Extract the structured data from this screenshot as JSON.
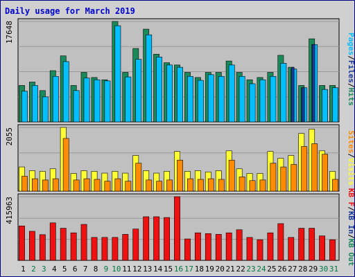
{
  "colors": {
    "background": "#ffffff",
    "frame": "#d0d0d0",
    "frame_border": "#000080",
    "plot_bg": "#c0c0c0",
    "grid": "#999999",
    "title": "#0000cc",
    "weekday": "#000000",
    "weekend": "#007744",
    "slash": "#000000"
  },
  "chart_data": [
    {
      "type": "bar",
      "id": "pages-files-hits",
      "title": "Daily usage for March 2019",
      "ylabel_max": "17648",
      "ylim": [
        0,
        17648
      ],
      "grid": true,
      "categories": [
        "1",
        "2",
        "3",
        "4",
        "5",
        "6",
        "7",
        "8",
        "9",
        "10",
        "11",
        "12",
        "13",
        "14",
        "15",
        "16",
        "17",
        "18",
        "19",
        "20",
        "21",
        "22",
        "23",
        "24",
        "25",
        "26",
        "27",
        "28",
        "29",
        "30",
        "31"
      ],
      "series": [
        {
          "name": "Hits",
          "color": "#1a8a5a",
          "values": [
            6400,
            7000,
            5500,
            9000,
            11600,
            6400,
            8700,
            7800,
            7400,
            17648,
            8700,
            12900,
            16300,
            11900,
            10400,
            10000,
            8700,
            7800,
            8700,
            8700,
            10700,
            8700,
            7400,
            7800,
            8700,
            11700,
            9600,
            6400,
            14600,
            6400,
            6400
          ]
        },
        {
          "name": "Files",
          "color": "#00bfff",
          "values": [
            5400,
            6400,
            4400,
            8000,
            10600,
            5500,
            7700,
            7400,
            7200,
            16900,
            7900,
            11000,
            15300,
            11400,
            10000,
            9600,
            8000,
            7300,
            8300,
            8000,
            10000,
            8000,
            6700,
            7400,
            8000,
            10300,
            9300,
            6000,
            13600,
            5700,
            6000
          ]
        },
        {
          "name": "Pages",
          "color": "#1a3a9a",
          "values": [
            0,
            0,
            0,
            0,
            0,
            0,
            0,
            0,
            0,
            0,
            0,
            0,
            0,
            0,
            0,
            0,
            0,
            0,
            0,
            0,
            0,
            0,
            0,
            0,
            0,
            0,
            9600,
            6000,
            13600,
            0,
            0
          ]
        }
      ]
    },
    {
      "type": "bar",
      "id": "visits-sites",
      "ylabel_max": "2055",
      "ylim": [
        0,
        2055
      ],
      "grid": true,
      "categories": [
        "1",
        "2",
        "3",
        "4",
        "5",
        "6",
        "7",
        "8",
        "9",
        "10",
        "11",
        "12",
        "13",
        "14",
        "15",
        "16",
        "17",
        "18",
        "19",
        "20",
        "21",
        "22",
        "23",
        "24",
        "25",
        "26",
        "27",
        "28",
        "29",
        "30",
        "31"
      ],
      "series": [
        {
          "name": "Visits",
          "color": "#ffff33",
          "values": [
            780,
            660,
            640,
            720,
            2055,
            570,
            660,
            640,
            580,
            640,
            580,
            1150,
            660,
            580,
            640,
            1280,
            640,
            660,
            620,
            660,
            1300,
            720,
            570,
            570,
            1280,
            1060,
            1150,
            1860,
            2000,
            1300,
            640
          ]
        },
        {
          "name": "Sites",
          "color": "#ff8c00",
          "values": [
            480,
            400,
            360,
            400,
            1700,
            360,
            400,
            380,
            320,
            400,
            320,
            900,
            360,
            320,
            360,
            1000,
            400,
            380,
            400,
            380,
            1000,
            460,
            340,
            360,
            900,
            780,
            860,
            1440,
            1530,
            1190,
            380
          ]
        }
      ]
    },
    {
      "type": "bar",
      "id": "kbin-kbout-kbf",
      "ylabel_max": "415963",
      "ylim": [
        0,
        415963
      ],
      "grid": true,
      "categories": [
        "1",
        "2",
        "3",
        "4",
        "5",
        "6",
        "7",
        "8",
        "9",
        "10",
        "11",
        "12",
        "13",
        "14",
        "15",
        "16",
        "17",
        "18",
        "19",
        "20",
        "21",
        "22",
        "23",
        "24",
        "25",
        "26",
        "27",
        "28",
        "29",
        "30",
        "31"
      ],
      "series": [
        {
          "name": "KB F",
          "color": "#ee1111",
          "values": [
            225000,
            190000,
            168000,
            245000,
            210000,
            180000,
            235000,
            150000,
            150000,
            150000,
            170000,
            205000,
            285000,
            285000,
            280000,
            415963,
            140000,
            180000,
            175000,
            170000,
            180000,
            200000,
            150000,
            135000,
            180000,
            240000,
            150000,
            210000,
            210000,
            160000,
            135000
          ]
        }
      ]
    }
  ],
  "legends": [
    {
      "chart": "pages-files-hits",
      "items": [
        {
          "text": "Pages",
          "color": "#00bfff"
        },
        {
          "text": "Files",
          "color": "#1a3a9a"
        },
        {
          "text": "Hits",
          "color": "#1a8a5a"
        }
      ]
    },
    {
      "chart": "visits-sites",
      "items": [
        {
          "text": "Sites",
          "color": "#ff8c00"
        },
        {
          "text": "Visits",
          "color": "#ffff33"
        }
      ]
    },
    {
      "chart": "kbin-kbout-kbf",
      "items": [
        {
          "text": "KB F",
          "color": "#ee1111"
        },
        {
          "text": "KB In",
          "color": "#1a3a9a"
        },
        {
          "text": "KB Out",
          "color": "#1a8a5a"
        }
      ]
    }
  ],
  "days": [
    "1",
    "2",
    "3",
    "4",
    "5",
    "6",
    "7",
    "8",
    "9",
    "10",
    "11",
    "12",
    "13",
    "14",
    "15",
    "16",
    "17",
    "18",
    "19",
    "20",
    "21",
    "22",
    "23",
    "24",
    "25",
    "26",
    "27",
    "28",
    "29",
    "30",
    "31"
  ],
  "weekend_days": [
    "2",
    "3",
    "9",
    "10",
    "16",
    "17",
    "23",
    "24",
    "30",
    "31"
  ]
}
